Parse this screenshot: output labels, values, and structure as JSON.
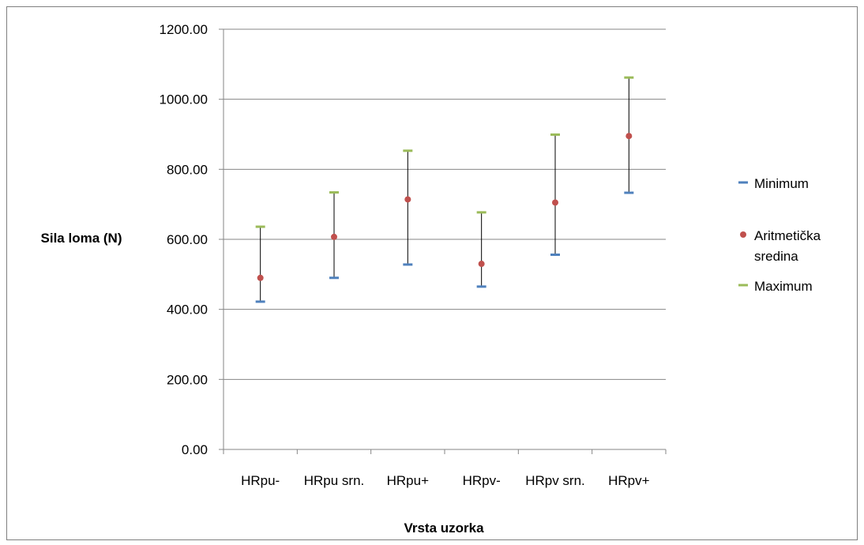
{
  "chart_data": {
    "type": "scatter",
    "subtype": "high-low-close",
    "title": "",
    "xlabel": "Vrsta uzorka",
    "ylabel": "Sila loma (N)",
    "ylim": [
      0,
      1200
    ],
    "yticks": [
      "0.00",
      "200.00",
      "400.00",
      "600.00",
      "800.00",
      "1000.00",
      "1200.00"
    ],
    "grid": true,
    "legend_position": "right",
    "categories": [
      "HRpu-",
      "HRpu srn.",
      "HRpu+",
      "HRpv-",
      "HRpv srn.",
      "HRpv+"
    ],
    "series": [
      {
        "name": "Minimum",
        "color": "#4f81bd",
        "marker": "dash",
        "values": [
          422,
          490,
          528,
          465,
          556,
          733
        ]
      },
      {
        "name": "Aritmetička sredina",
        "color": "#c0504d",
        "marker": "circle",
        "values": [
          490,
          607,
          714,
          530,
          705,
          895
        ]
      },
      {
        "name": "Maximum",
        "color": "#9bbb59",
        "marker": "dash",
        "values": [
          636,
          734,
          853,
          677,
          899,
          1062
        ]
      }
    ],
    "legend_labels": [
      [
        "Minimum"
      ],
      [
        "Aritmetička",
        "sredina"
      ],
      [
        "Maximum"
      ]
    ]
  }
}
